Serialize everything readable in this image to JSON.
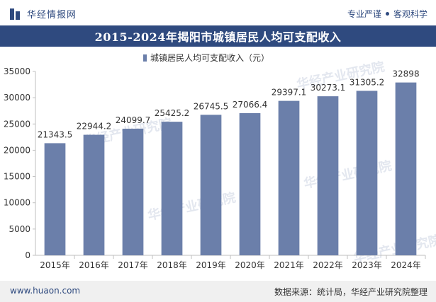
{
  "header": {
    "logo_text": "华经情报网",
    "tagline_left": "专业严谨",
    "tagline_right": "客观科学"
  },
  "watermark": "华经产业研究院",
  "footer": {
    "website": "www.huaon.com",
    "source": "数据来源：统计局，华经产业研究院整理"
  },
  "colors": {
    "brand": "#2f4a7f",
    "bar": "#6b7faa"
  },
  "chart_data": {
    "type": "bar",
    "title": "2015-2024年揭阳市城镇居民人均可支配收入",
    "categories": [
      "2015年",
      "2016年",
      "2017年",
      "2018年",
      "2019年",
      "2020年",
      "2021年",
      "2022年",
      "2023年",
      "2024年"
    ],
    "series": [
      {
        "name": "城镇居民人均可支配收入（元）",
        "values": [
          21343.5,
          22944.2,
          24099.7,
          25425.2,
          26745.5,
          27066.4,
          29397.1,
          30273.1,
          31305.2,
          32898
        ],
        "labels": [
          "21343.5",
          "22944.2",
          "24099.7",
          "25425.2",
          "26745.5",
          "27066.4",
          "29397.1",
          "30273.1",
          "31305.2",
          "32898"
        ]
      }
    ],
    "ylim": [
      0,
      35000
    ],
    "yticks": [
      "0",
      "5000",
      "10000",
      "15000",
      "20000",
      "25000",
      "30000",
      "35000"
    ],
    "grid": false,
    "legend": "top-center"
  }
}
